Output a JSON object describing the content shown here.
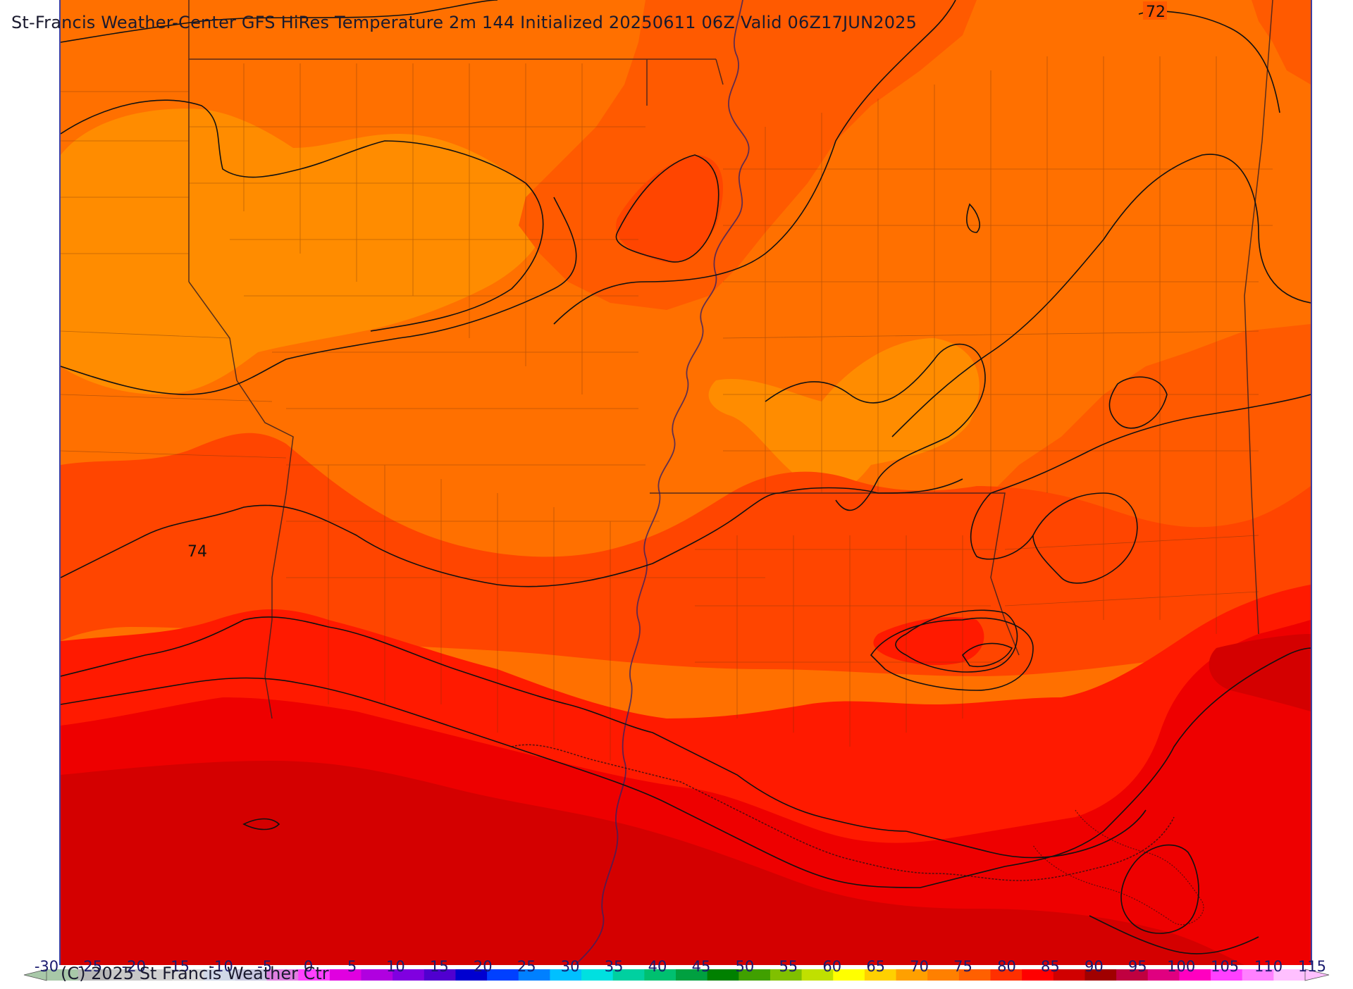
{
  "title": "St-Francis Weather-Center GFS HiRes Temperature 2m  144 Initialized 20250611 06Z Valid 06Z17JUN2025",
  "copyright": "(C) 2025 St Francis Weather Ctr",
  "contour_labels": [
    "72",
    "74"
  ],
  "colorbar": {
    "ticks": [
      "-30",
      "-25",
      "-20",
      "-15",
      "-10",
      "-5",
      "0",
      "5",
      "10",
      "15",
      "20",
      "25",
      "30",
      "35",
      "40",
      "45",
      "50",
      "55",
      "60",
      "65",
      "70",
      "75",
      "80",
      "85",
      "90",
      "95",
      "100",
      "105",
      "110",
      "115"
    ],
    "colors": [
      "#a8c8a8",
      "#b8b8b8",
      "#c8c8c8",
      "#d0d0d0",
      "#d8d8d8",
      "#d0d8e8",
      "#c8c8e0",
      "#e080e0",
      "#ff40ff",
      "#e000e0",
      "#b000e0",
      "#8000e0",
      "#5000d0",
      "#0000d0",
      "#0040ff",
      "#0080ff",
      "#00c0ff",
      "#00e0e0",
      "#00d0a0",
      "#00c070",
      "#00a040",
      "#008000",
      "#40a000",
      "#80c000",
      "#c0e000",
      "#ffff00",
      "#ffd000",
      "#ffa000",
      "#ff8000",
      "#ff6000",
      "#ff3000",
      "#ff0000",
      "#d00000",
      "#a00000",
      "#c00040",
      "#e00080",
      "#ff00c0",
      "#ff40ff",
      "#ff80ff",
      "#ffc0ff"
    ]
  },
  "colors": {
    "band_70": "#ff8c00",
    "band_72": "#ff7000",
    "band_74": "#ff5a00",
    "band_76": "#ff3a00",
    "band_78": "#ff1a00",
    "band_80": "#ee0000",
    "band_82": "#d40000"
  }
}
